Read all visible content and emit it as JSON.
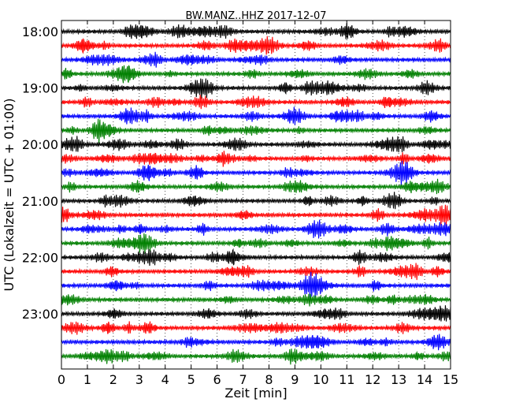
{
  "chart_data": {
    "type": "line",
    "title": "BW.MANZ..HHZ 2017-12-07",
    "xlabel": "Zeit  [min]",
    "ylabel": "UTC (Lokalzeit = UTC + 01:00)",
    "xlim": [
      0,
      15
    ],
    "x_ticks": [
      0,
      1,
      2,
      3,
      4,
      5,
      6,
      7,
      8,
      9,
      10,
      11,
      12,
      13,
      14,
      15
    ],
    "x_tick_labels": [
      "0",
      "1",
      "2",
      "3",
      "4",
      "5",
      "6",
      "7",
      "8",
      "9",
      "10",
      "11",
      "12",
      "13",
      "14",
      "15"
    ],
    "grid": "vertical dotted lines at each minute",
    "trace_interval_minutes": 15,
    "trace_count": 24,
    "first_trace_start": "18:00",
    "trace_colors": [
      "#000000",
      "#ff0000",
      "#0000ff",
      "#008000"
    ],
    "y_tick_labels": [
      {
        "label": "18:00",
        "trace_index": 0
      },
      {
        "label": "19:00",
        "trace_index": 4
      },
      {
        "label": "20:00",
        "trace_index": 8
      },
      {
        "label": "21:00",
        "trace_index": 12
      },
      {
        "label": "22:00",
        "trace_index": 16
      },
      {
        "label": "23:00",
        "trace_index": 20
      }
    ],
    "series_description": "continuous seismogram, vertical component, each row 15 minutes"
  }
}
